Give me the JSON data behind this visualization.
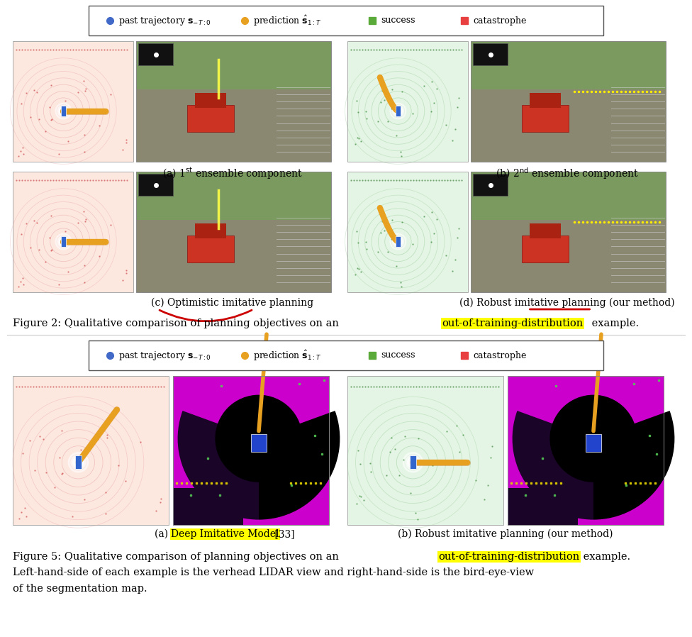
{
  "figure_width": 9.76,
  "figure_height": 8.98,
  "dpi": 100,
  "bg": "#ffffff",
  "legend": {
    "items": [
      {
        "label": "past trajectory $\\mathbf{s}_{-T:0}$",
        "color": "#4169c8",
        "marker": "o"
      },
      {
        "label": "prediction $\\hat{\\mathbf{s}}_{1:T}$",
        "color": "#e8a020",
        "marker": "o"
      },
      {
        "label": "success",
        "color": "#5aaa3a",
        "marker": "s"
      },
      {
        "label": "catastrophe",
        "color": "#e84040",
        "marker": "s"
      }
    ]
  },
  "colors": {
    "lidar_red_bg": "#fde8e0",
    "lidar_green_bg": "#e5f5e5",
    "lidar_red_ring": "#e09090",
    "lidar_green_ring": "#80c080",
    "orange_traj": "#e8a020",
    "blue_car": "#4169c8",
    "scene_sky": "#6a9060",
    "scene_road": "#8a8878",
    "scene_car": "#cc3322",
    "seg_magenta": "#cc00cc",
    "seg_purple": "#6a2080",
    "seg_black": "#000000",
    "seg_yellow_dot": "#ddcc00",
    "seg_blue": "#2244cc",
    "red_underline": "#cc0000",
    "highlight_yellow": "#ffff00",
    "divider": "#cccccc"
  },
  "fig2_caption": "Figure 2: Qualitative comparison of planning objectives on an {HL}out-of-training-distribution{/HL} example.",
  "fig2_caption_a": "(a) 1$^{\\mathrm{st}}$ ensemble component",
  "fig2_caption_b": "(b) 2$^{\\mathrm{nd}}$ ensemble component",
  "fig2_caption_c": "(c) Optimistic imitative planning",
  "fig2_caption_d": "(d) Robust imitative planning (our method)",
  "fig5_caption_a_pre": "(a) ",
  "fig5_caption_a_hl": "Deep Imitative Model",
  "fig5_caption_a_post": " [33]",
  "fig5_caption_b": "(b) Robust imitative planning (our method)",
  "fig5_caption_l1": "Figure 5: Qualitative comparison of planning objectives on an {HL}out-of-training-distribution{/HL} example.",
  "fig5_caption_l2": "Left-hand-side of each example is the verhead LIDAR view and right-hand-side is the bird-eye-view",
  "fig5_caption_l3": "of the segmentation map."
}
